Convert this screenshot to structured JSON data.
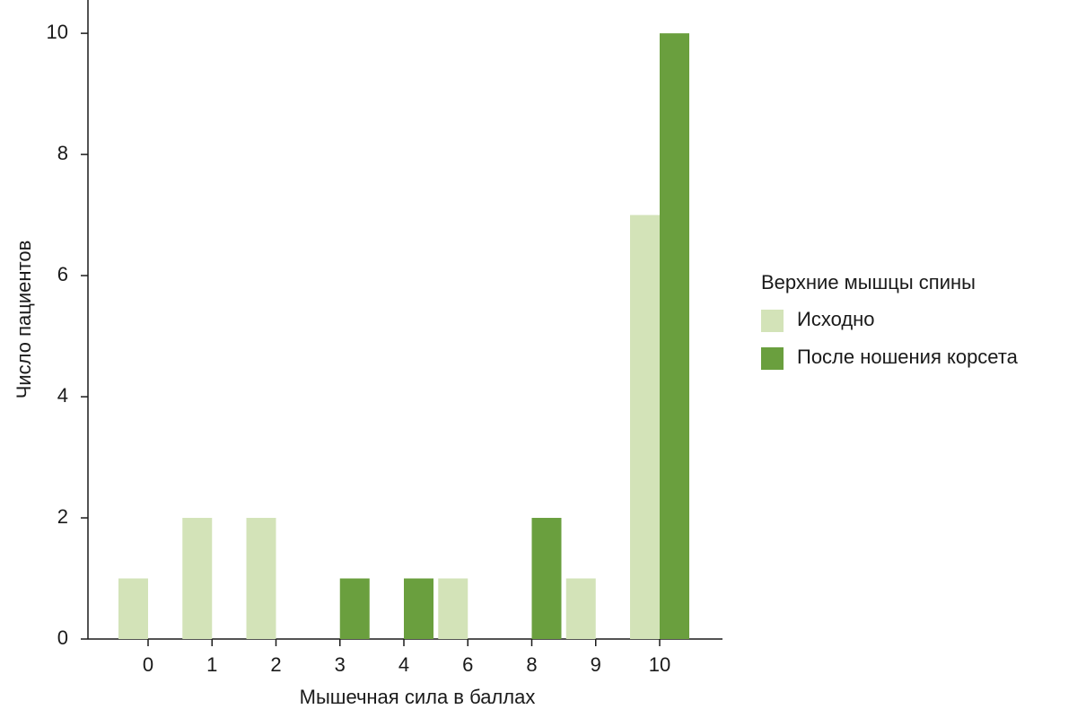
{
  "chart_data": {
    "type": "bar",
    "x_label": "Мышечная сила в баллах",
    "y_label": "Число пациентов",
    "categories": [
      "0",
      "1",
      "2",
      "3",
      "4",
      "6",
      "8",
      "9",
      "10"
    ],
    "series": [
      {
        "name": "Исходно",
        "color": "#d3e3b8",
        "values": [
          1,
          2,
          2,
          0,
          0,
          1,
          0,
          1,
          7
        ]
      },
      {
        "name": "После ношения корсета",
        "color": "#6a9f3e",
        "values": [
          0,
          0,
          0,
          1,
          1,
          0,
          2,
          0,
          10
        ]
      }
    ],
    "ylim": [
      0,
      10.55
    ],
    "yticks": [
      0,
      2,
      4,
      6,
      8,
      10
    ],
    "legend_title": "Верхние мышцы спины",
    "legend_position": "right",
    "grid": false
  }
}
